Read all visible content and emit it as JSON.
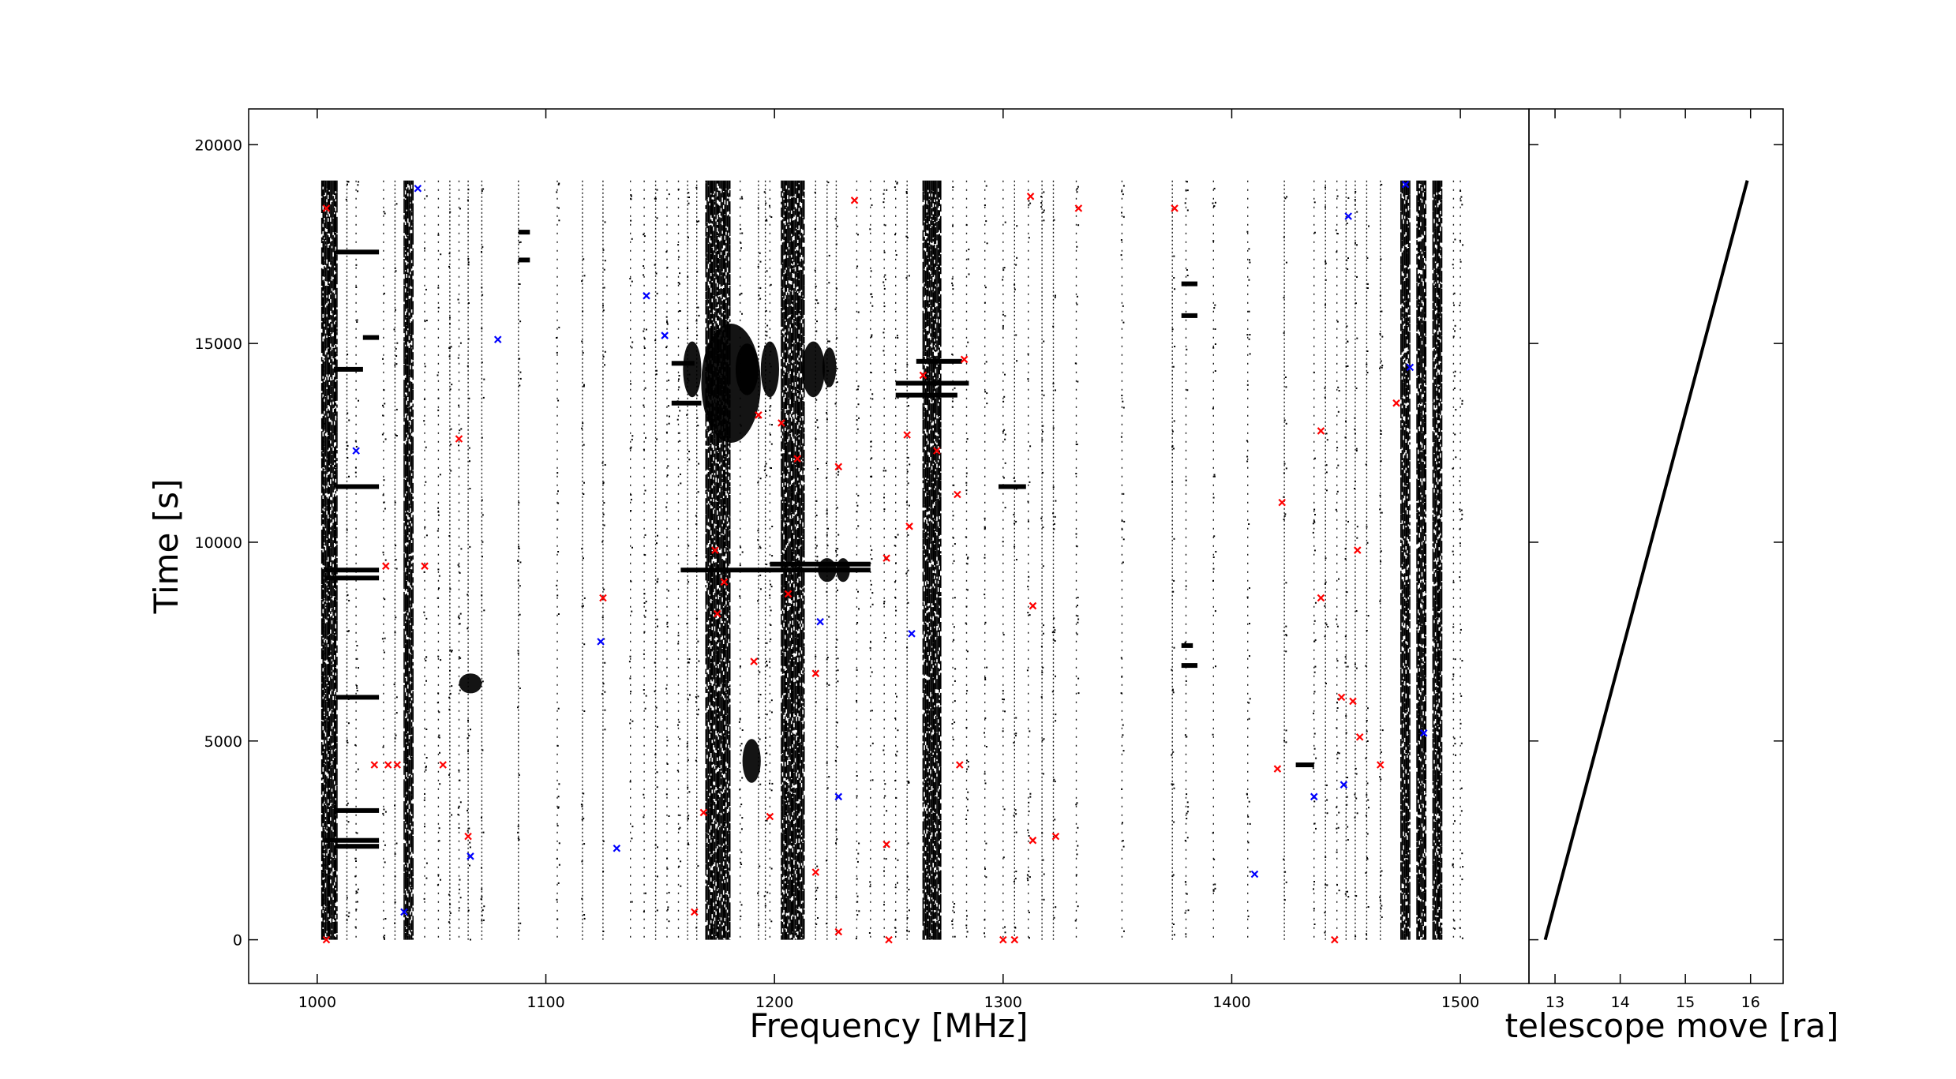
{
  "chart_data": [
    {
      "type": "scatter",
      "panel": "main",
      "title": "",
      "xlabel": "Frequency [MHz]",
      "ylabel": "Time [s]",
      "xlim": [
        970,
        1530
      ],
      "ylim": [
        -1100,
        20900
      ],
      "xticks": [
        1000,
        1100,
        1200,
        1300,
        1400,
        1500
      ],
      "yticks": [
        0,
        5000,
        10000,
        15000,
        20000
      ],
      "xtick_labels": [
        "1000",
        "1100",
        "1200",
        "1300",
        "1400",
        "1500"
      ],
      "ytick_labels": [
        "0",
        "5000",
        "10000",
        "15000",
        "20000"
      ],
      "grid": false,
      "legend": "none",
      "time_range": [
        0,
        19100
      ],
      "colors": {
        "detections": "#000000",
        "red_markers": "#ff0000",
        "blue_markers": "#0000ff"
      },
      "series": [
        {
          "kind": "continuous_bands",
          "color": "#000000",
          "freq_ranges": [
            [
              1002,
              1009
            ],
            [
              1038,
              1042
            ],
            [
              1170,
              1181
            ],
            [
              1203,
              1213
            ],
            [
              1265,
              1273
            ],
            [
              1474,
              1478
            ],
            [
              1481,
              1485
            ],
            [
              1488,
              1492
            ]
          ]
        },
        {
          "kind": "sparse_lines",
          "color": "#000000",
          "freqs": [
            1003,
            1013,
            1017,
            1029,
            1034,
            1047,
            1053,
            1058,
            1062,
            1066,
            1072,
            1088,
            1105,
            1116,
            1125,
            1137,
            1143,
            1148,
            1153,
            1158,
            1162,
            1166,
            1185,
            1193,
            1196,
            1198,
            1218,
            1223,
            1227,
            1236,
            1242,
            1248,
            1253,
            1258,
            1278,
            1284,
            1292,
            1300,
            1305,
            1311,
            1317,
            1322,
            1332,
            1352,
            1374,
            1380,
            1392,
            1407,
            1423,
            1436,
            1441,
            1446,
            1450,
            1454,
            1459,
            1465,
            1497,
            1500
          ]
        },
        {
          "kind": "horizontal_segments",
          "color": "#000000",
          "segments": [
            {
              "t": 17300,
              "f": [
                1008,
                1027
              ]
            },
            {
              "t": 15150,
              "f": [
                1020,
                1027
              ]
            },
            {
              "t": 14350,
              "f": [
                1008,
                1020
              ]
            },
            {
              "t": 11400,
              "f": [
                1008,
                1027
              ]
            },
            {
              "t": 9300,
              "f": [
                1003,
                1027
              ]
            },
            {
              "t": 9100,
              "f": [
                1003,
                1027
              ]
            },
            {
              "t": 6100,
              "f": [
                1008,
                1027
              ]
            },
            {
              "t": 3250,
              "f": [
                1008,
                1027
              ]
            },
            {
              "t": 2500,
              "f": [
                1003,
                1027
              ]
            },
            {
              "t": 2350,
              "f": [
                1008,
                1027
              ]
            },
            {
              "t": 17800,
              "f": [
                1088,
                1093
              ]
            },
            {
              "t": 17100,
              "f": [
                1088,
                1093
              ]
            },
            {
              "t": 14500,
              "f": [
                1155,
                1165
              ]
            },
            {
              "t": 13500,
              "f": [
                1155,
                1168
              ]
            },
            {
              "t": 9300,
              "f": [
                1159,
                1242
              ]
            },
            {
              "t": 9450,
              "f": [
                1198,
                1242
              ]
            },
            {
              "t": 14000,
              "f": [
                1253,
                1285
              ]
            },
            {
              "t": 13700,
              "f": [
                1253,
                1280
              ]
            },
            {
              "t": 14550,
              "f": [
                1262,
                1282
              ]
            },
            {
              "t": 11400,
              "f": [
                1298,
                1310
              ]
            },
            {
              "t": 4400,
              "f": [
                1428,
                1436
              ]
            },
            {
              "t": 16500,
              "f": [
                1378,
                1385
              ]
            },
            {
              "t": 15700,
              "f": [
                1378,
                1385
              ]
            },
            {
              "t": 7400,
              "f": [
                1378,
                1383
              ]
            },
            {
              "t": 6900,
              "f": [
                1378,
                1385
              ]
            }
          ]
        },
        {
          "kind": "blobs",
          "color": "#000000",
          "items": [
            {
              "f": 1067,
              "t": 6450,
              "rf": 5,
              "rt": 250
            },
            {
              "f": 1164,
              "t": 14350,
              "rf": 4,
              "rt": 700
            },
            {
              "f": 1188,
              "t": 14350,
              "rf": 5,
              "rt": 650
            },
            {
              "f": 1190,
              "t": 4500,
              "rf": 4,
              "rt": 550
            },
            {
              "f": 1198,
              "t": 14350,
              "rf": 4,
              "rt": 700
            },
            {
              "f": 1217,
              "t": 14350,
              "rf": 5,
              "rt": 700
            },
            {
              "f": 1224,
              "t": 14400,
              "rf": 3,
              "rt": 500
            },
            {
              "f": 1223,
              "t": 9300,
              "rf": 4,
              "rt": 300
            },
            {
              "f": 1230,
              "t": 9300,
              "rf": 3,
              "rt": 300
            },
            {
              "f": 1181,
              "t": 14000,
              "rf": 13,
              "rt": 1500
            }
          ]
        },
        {
          "kind": "markers",
          "marker": "x",
          "color": "#ff0000",
          "points": [
            [
              1004,
              18400
            ],
            [
              1004,
              0
            ],
            [
              1025,
              4400
            ],
            [
              1030,
              9400
            ],
            [
              1031,
              4400
            ],
            [
              1035,
              4400
            ],
            [
              1047,
              9400
            ],
            [
              1055,
              4400
            ],
            [
              1062,
              12600
            ],
            [
              1066,
              2600
            ],
            [
              1125,
              8600
            ],
            [
              1165,
              700
            ],
            [
              1169,
              3200
            ],
            [
              1175,
              8200
            ],
            [
              1174,
              9800
            ],
            [
              1178,
              9000
            ],
            [
              1191,
              7000
            ],
            [
              1193,
              13200
            ],
            [
              1198,
              3100
            ],
            [
              1203,
              13000
            ],
            [
              1206,
              8700
            ],
            [
              1210,
              12100
            ],
            [
              1218,
              1700
            ],
            [
              1218,
              6700
            ],
            [
              1228,
              11900
            ],
            [
              1228,
              200
            ],
            [
              1235,
              18600
            ],
            [
              1249,
              9600
            ],
            [
              1249,
              2400
            ],
            [
              1250,
              0
            ],
            [
              1258,
              12700
            ],
            [
              1259,
              10400
            ],
            [
              1265,
              14200
            ],
            [
              1271,
              12300
            ],
            [
              1280,
              11200
            ],
            [
              1281,
              4400
            ],
            [
              1283,
              14600
            ],
            [
              1300,
              0
            ],
            [
              1305,
              0
            ],
            [
              1312,
              18700
            ],
            [
              1313,
              8400
            ],
            [
              1313,
              2500
            ],
            [
              1323,
              2600
            ],
            [
              1333,
              18400
            ],
            [
              1375,
              18400
            ],
            [
              1420,
              4300
            ],
            [
              1422,
              11000
            ],
            [
              1439,
              12800
            ],
            [
              1439,
              8600
            ],
            [
              1445,
              0
            ],
            [
              1448,
              6100
            ],
            [
              1453,
              6000
            ],
            [
              1455,
              9800
            ],
            [
              1456,
              5100
            ],
            [
              1465,
              4400
            ],
            [
              1472,
              13500
            ]
          ]
        },
        {
          "kind": "markers",
          "marker": "x",
          "color": "#0000ff",
          "points": [
            [
              1044,
              18900
            ],
            [
              1017,
              12300
            ],
            [
              1038,
              700
            ],
            [
              1067,
              2100
            ],
            [
              1079,
              15100
            ],
            [
              1124,
              7500
            ],
            [
              1131,
              2300
            ],
            [
              1144,
              16200
            ],
            [
              1152,
              15200
            ],
            [
              1220,
              8000
            ],
            [
              1228,
              3600
            ],
            [
              1260,
              7700
            ],
            [
              1410,
              1650
            ],
            [
              1436,
              3600
            ],
            [
              1449,
              3900
            ],
            [
              1451,
              18200
            ],
            [
              1476,
              19000
            ],
            [
              1478,
              14400
            ],
            [
              1484,
              5200
            ]
          ]
        }
      ]
    },
    {
      "type": "line",
      "panel": "right",
      "title": "",
      "xlabel": "telescope move [ra]",
      "ylabel": "",
      "xlim": [
        12.6,
        16.5
      ],
      "ylim": [
        -1100,
        20900
      ],
      "xticks": [
        13,
        14,
        15,
        16
      ],
      "xtick_labels": [
        "13",
        "14",
        "15",
        "16"
      ],
      "yticks": [
        0,
        5000,
        10000,
        15000,
        20000
      ],
      "grid": false,
      "legend": "none",
      "x": [
        12.85,
        15.95
      ],
      "y": [
        0,
        19100
      ],
      "color": "#000000"
    }
  ]
}
